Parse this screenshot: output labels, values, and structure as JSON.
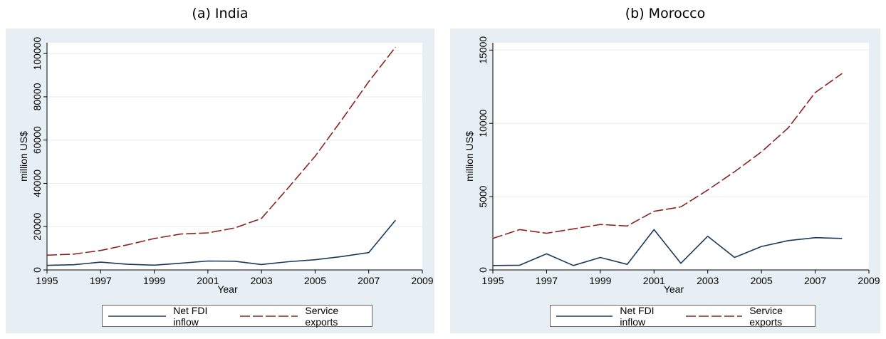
{
  "chart_data": [
    {
      "type": "line",
      "title": "(a) India",
      "xlabel": "Year",
      "ylabel": "million US$",
      "xlim": [
        1995,
        2009
      ],
      "ylim": [
        0,
        105000
      ],
      "xticks": [
        1995,
        1997,
        1999,
        2001,
        2003,
        2005,
        2007,
        2009
      ],
      "yticks": [
        0,
        20000,
        40000,
        60000,
        80000,
        100000
      ],
      "grid": true,
      "legend_position": "bottom",
      "x": [
        1995,
        1996,
        1997,
        1998,
        1999,
        2000,
        2001,
        2002,
        2003,
        2004,
        2005,
        2006,
        2007,
        2008
      ],
      "series": [
        {
          "name": "Net FDI inflow",
          "color": "#1a3a5c",
          "dash": "solid",
          "values": [
            2100,
            2400,
            3600,
            2600,
            2200,
            3100,
            4100,
            4000,
            2500,
            3800,
            4700,
            6200,
            8000,
            23000
          ]
        },
        {
          "name": "Service exports",
          "color": "#8b2323",
          "dash": "long-dash",
          "values": [
            6800,
            7300,
            9000,
            11600,
            14500,
            16600,
            17100,
            19400,
            23800,
            38000,
            52500,
            69500,
            87000,
            103000
          ]
        }
      ]
    },
    {
      "type": "line",
      "title": "(b) Morocco",
      "xlabel": "Year",
      "ylabel": "million US$",
      "xlim": [
        1995,
        2009
      ],
      "ylim": [
        0,
        15500
      ],
      "xticks": [
        1995,
        1997,
        1999,
        2001,
        2003,
        2005,
        2007,
        2009
      ],
      "yticks": [
        0,
        5000,
        10000,
        15000
      ],
      "grid": true,
      "legend_position": "bottom",
      "x": [
        1995,
        1996,
        1997,
        1998,
        1999,
        2000,
        2001,
        2002,
        2003,
        2004,
        2005,
        2006,
        2007,
        2008
      ],
      "series": [
        {
          "name": "Net FDI inflow",
          "color": "#1a3a5c",
          "dash": "solid",
          "values": [
            300,
            320,
            1100,
            300,
            850,
            380,
            2750,
            450,
            2300,
            850,
            1600,
            2000,
            2200,
            2150
          ]
        },
        {
          "name": "Service exports",
          "color": "#8b2323",
          "dash": "long-dash",
          "values": [
            2150,
            2750,
            2500,
            2800,
            3100,
            3000,
            4000,
            4300,
            5450,
            6700,
            8050,
            9700,
            12100,
            13400
          ]
        }
      ]
    }
  ]
}
